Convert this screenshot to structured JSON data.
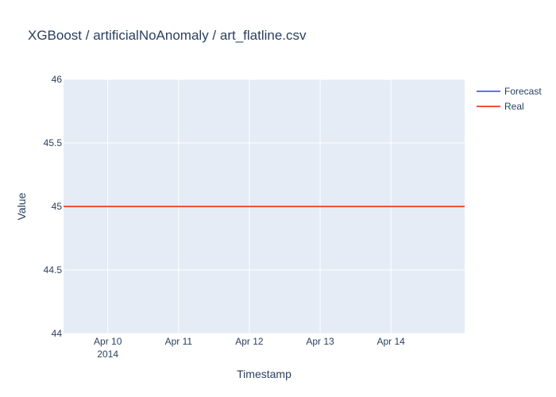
{
  "chart_data": {
    "type": "line",
    "title": "XGBoost / artificialNoAnomaly / art_flatline.csv",
    "xlabel": "Timestamp",
    "ylabel": "Value",
    "x_axis": {
      "type": "date",
      "range": [
        "2014-04-09 09:00",
        "2014-04-15 01:00"
      ],
      "ticks": [
        {
          "value": "2014-04-10",
          "label": "Apr 10",
          "sublabel": "2014"
        },
        {
          "value": "2014-04-11",
          "label": "Apr 11",
          "sublabel": ""
        },
        {
          "value": "2014-04-12",
          "label": "Apr 12",
          "sublabel": ""
        },
        {
          "value": "2014-04-13",
          "label": "Apr 13",
          "sublabel": ""
        },
        {
          "value": "2014-04-14",
          "label": "Apr 14",
          "sublabel": ""
        }
      ]
    },
    "y_axis": {
      "range": [
        44,
        46
      ],
      "ticks": [
        {
          "value": 44,
          "label": "44"
        },
        {
          "value": 44.5,
          "label": "44.5"
        },
        {
          "value": 45,
          "label": "45"
        },
        {
          "value": 45.5,
          "label": "45.5"
        },
        {
          "value": 46,
          "label": "46"
        }
      ]
    },
    "grid": true,
    "legend_position": "top-right",
    "series": [
      {
        "name": "Forecast",
        "color": "#636efa",
        "x": [
          "2014-04-09 09:00",
          "2014-04-15 01:00"
        ],
        "y": [
          45,
          45
        ]
      },
      {
        "name": "Real",
        "color": "#ef553b",
        "x": [
          "2014-04-09 09:00",
          "2014-04-15 01:00"
        ],
        "y": [
          45,
          45
        ]
      }
    ],
    "plot_background": "#e5ecf6",
    "grid_color": "#ffffff"
  }
}
